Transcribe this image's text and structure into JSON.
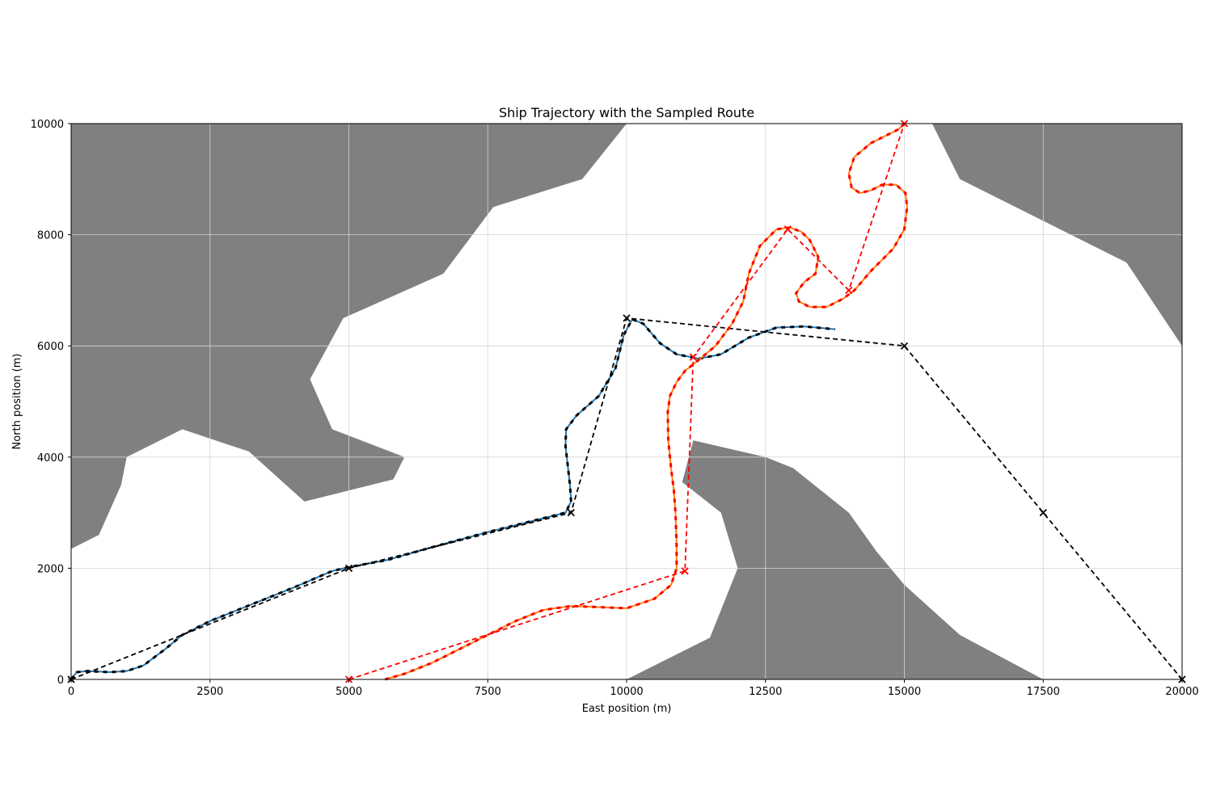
{
  "chart_data": {
    "type": "line",
    "title": "Ship Trajectory with the Sampled Route",
    "xlabel": "East position (m)",
    "ylabel": "North position (m)",
    "xlim": [
      0,
      20000
    ],
    "ylim": [
      0,
      10000
    ],
    "xticks": [
      0,
      2500,
      5000,
      7500,
      10000,
      12500,
      15000,
      17500,
      20000
    ],
    "yticks": [
      0,
      2000,
      4000,
      6000,
      8000,
      10000
    ],
    "grid": true,
    "colors": {
      "land": "#808080",
      "ship1_route": "#000000",
      "ship1_trajectory": "#1f77b4",
      "ship2_route": "#ff0000",
      "ship2_trajectory": "#ff7f0e",
      "grid": "#d3d3d3"
    },
    "obstacles": [
      [
        [
          0,
          10000
        ],
        [
          10000,
          10000
        ],
        [
          9200,
          9000
        ],
        [
          7600,
          8500
        ],
        [
          6700,
          7300
        ],
        [
          4900,
          6500
        ],
        [
          4300,
          5400
        ],
        [
          4700,
          4500
        ],
        [
          6000,
          4000
        ],
        [
          5800,
          3600
        ],
        [
          4200,
          3200
        ],
        [
          3200,
          4100
        ],
        [
          2000,
          4500
        ],
        [
          1000,
          4000
        ],
        [
          900,
          3500
        ],
        [
          500,
          2600
        ],
        [
          0,
          2350
        ]
      ],
      [
        [
          10000,
          0
        ],
        [
          11500,
          750
        ],
        [
          12000,
          2000
        ],
        [
          11700,
          3000
        ],
        [
          11000,
          3550
        ],
        [
          11200,
          4300
        ],
        [
          12500,
          4000
        ],
        [
          13000,
          3800
        ],
        [
          14000,
          3000
        ],
        [
          14500,
          2300
        ],
        [
          15000,
          1700
        ],
        [
          16000,
          800
        ],
        [
          17500,
          0
        ]
      ],
      [
        [
          15500,
          10000
        ],
        [
          20000,
          10000
        ],
        [
          20000,
          6000
        ],
        [
          19000,
          7500
        ],
        [
          16000,
          9000
        ]
      ]
    ],
    "series": [
      {
        "role": "route",
        "x": [
          0,
          5000,
          9000,
          10000,
          15000,
          17500,
          20000
        ],
        "y": [
          0,
          2000,
          3000,
          6500,
          6000,
          3000,
          0
        ]
      },
      {
        "role": "trajectory",
        "x": [
          0,
          100,
          300,
          700,
          1000,
          1300,
          1700,
          2000,
          2500,
          3200,
          4000,
          4700,
          5000,
          5700,
          6500,
          7500,
          8500,
          8900,
          9000,
          8980,
          8900,
          8910,
          9100,
          9500,
          9800,
          9950,
          10100,
          10300,
          10600,
          10900,
          11300,
          11700,
          12200,
          12700,
          13200,
          13750
        ],
        "y": [
          0,
          130,
          150,
          130,
          150,
          250,
          550,
          800,
          1050,
          1330,
          1650,
          1950,
          2020,
          2150,
          2380,
          2650,
          2900,
          3000,
          3200,
          3500,
          4200,
          4500,
          4750,
          5100,
          5600,
          6200,
          6480,
          6400,
          6050,
          5850,
          5770,
          5850,
          6150,
          6330,
          6350,
          6300
        ]
      },
      {
        "role": "route",
        "x": [
          5000,
          11050,
          11200,
          12900,
          14000,
          15000
        ],
        "y": [
          0,
          1950,
          5800,
          8100,
          7000,
          10000
        ]
      },
      {
        "role": "trajectory",
        "x": [
          5650,
          6000,
          6500,
          7000,
          7500,
          8000,
          8500,
          9000,
          9500,
          10000,
          10500,
          10800,
          10900,
          10900,
          10880,
          10850,
          10800,
          10750,
          10740,
          10780,
          10900,
          11050,
          11300,
          11600,
          11900,
          12100,
          12200,
          12400,
          12700,
          12950,
          13150,
          13300,
          13450,
          13400,
          13200,
          13050,
          13100,
          13300,
          13600,
          13900,
          14100,
          14400,
          14800,
          15000,
          15050,
          15020,
          14850,
          14600,
          14400,
          14200,
          14050,
          14000,
          14100,
          14400,
          14700,
          14900,
          15000
        ],
        "y": [
          0,
          100,
          300,
          550,
          800,
          1050,
          1250,
          1320,
          1300,
          1280,
          1450,
          1700,
          2000,
          2400,
          3000,
          3400,
          3800,
          4300,
          4800,
          5100,
          5350,
          5550,
          5750,
          6000,
          6400,
          6800,
          7300,
          7800,
          8100,
          8130,
          8050,
          7900,
          7600,
          7300,
          7150,
          6950,
          6800,
          6700,
          6700,
          6850,
          7000,
          7350,
          7750,
          8100,
          8500,
          8750,
          8900,
          8900,
          8800,
          8750,
          8850,
          9100,
          9400,
          9650,
          9800,
          9900,
          10000
        ]
      }
    ]
  }
}
